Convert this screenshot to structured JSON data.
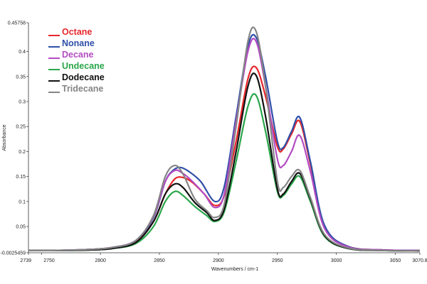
{
  "chart_data": {
    "type": "line",
    "xlabel": "Wavenumbers / cm-1",
    "ylabel": "Absorbance",
    "xlim": [
      2739,
      3070.8
    ],
    "ylim": [
      -0.0025459,
      0.45758
    ],
    "x_ticks": [
      {
        "value": 2739,
        "label": "2739"
      },
      {
        "value": 2750,
        "label": "2750"
      },
      {
        "value": 2800,
        "label": "2800"
      },
      {
        "value": 2850,
        "label": "2850"
      },
      {
        "value": 2900,
        "label": "2900"
      },
      {
        "value": 2950,
        "label": "2950"
      },
      {
        "value": 3000,
        "label": "3000"
      },
      {
        "value": 3050,
        "label": "3050"
      },
      {
        "value": 3070.8,
        "label": "3070.8"
      }
    ],
    "y_ticks": [
      {
        "value": -0.0025459,
        "label": "-0.0025459"
      },
      {
        "value": 0.05,
        "label": "0.05"
      },
      {
        "value": 0.1,
        "label": "0.1"
      },
      {
        "value": 0.15,
        "label": "0.15"
      },
      {
        "value": 0.2,
        "label": "0.2"
      },
      {
        "value": 0.25,
        "label": "0.25"
      },
      {
        "value": 0.3,
        "label": "0.3"
      },
      {
        "value": 0.35,
        "label": "0.35"
      },
      {
        "value": 0.4,
        "label": "0.4"
      },
      {
        "value": 0.45758,
        "label": "0.45758"
      }
    ],
    "grid": false,
    "legend_position": "top-left",
    "series": [
      {
        "name": "Octane",
        "color": "#e8262b",
        "x": [
          2739,
          2760,
          2790,
          2810,
          2830,
          2845,
          2855,
          2863,
          2870,
          2878,
          2888,
          2897,
          2905,
          2915,
          2925,
          2932,
          2940,
          2950,
          2955,
          2962,
          2969,
          2978,
          2990,
          3010,
          3040,
          3070.8
        ],
        "y": [
          0.002,
          0.002,
          0.004,
          0.008,
          0.02,
          0.06,
          0.115,
          0.145,
          0.148,
          0.138,
          0.115,
          0.092,
          0.112,
          0.22,
          0.345,
          0.368,
          0.31,
          0.21,
          0.205,
          0.235,
          0.26,
          0.175,
          0.05,
          0.01,
          0.003,
          0.002
        ]
      },
      {
        "name": "Nonane",
        "color": "#2f4fa8",
        "x": [
          2739,
          2760,
          2790,
          2810,
          2830,
          2845,
          2855,
          2862,
          2868,
          2875,
          2885,
          2897,
          2905,
          2915,
          2925,
          2932,
          2940,
          2950,
          2955,
          2962,
          2969,
          2978,
          2990,
          3010,
          3040,
          3070.8
        ],
        "y": [
          0.002,
          0.002,
          0.004,
          0.008,
          0.022,
          0.068,
          0.14,
          0.163,
          0.168,
          0.16,
          0.14,
          0.1,
          0.13,
          0.27,
          0.41,
          0.428,
          0.35,
          0.22,
          0.208,
          0.24,
          0.268,
          0.18,
          0.052,
          0.01,
          0.003,
          0.002
        ]
      },
      {
        "name": "Decane",
        "color": "#b44cc2",
        "x": [
          2739,
          2760,
          2790,
          2810,
          2830,
          2845,
          2855,
          2863,
          2870,
          2878,
          2888,
          2897,
          2905,
          2915,
          2925,
          2932,
          2940,
          2950,
          2955,
          2962,
          2969,
          2978,
          2990,
          3010,
          3040,
          3070.8
        ],
        "y": [
          0.002,
          0.002,
          0.004,
          0.008,
          0.022,
          0.07,
          0.14,
          0.162,
          0.156,
          0.14,
          0.115,
          0.088,
          0.115,
          0.26,
          0.4,
          0.42,
          0.33,
          0.185,
          0.172,
          0.2,
          0.232,
          0.16,
          0.046,
          0.009,
          0.003,
          0.002
        ]
      },
      {
        "name": "Undecane",
        "color": "#2aa64a",
        "x": [
          2739,
          2760,
          2790,
          2810,
          2830,
          2845,
          2855,
          2863,
          2870,
          2880,
          2890,
          2897,
          2905,
          2915,
          2925,
          2932,
          2940,
          2950,
          2955,
          2962,
          2969,
          2978,
          2990,
          3010,
          3040,
          3070.8
        ],
        "y": [
          0.002,
          0.002,
          0.003,
          0.006,
          0.016,
          0.05,
          0.1,
          0.12,
          0.112,
          0.09,
          0.072,
          0.06,
          0.08,
          0.18,
          0.29,
          0.312,
          0.24,
          0.12,
          0.112,
          0.135,
          0.15,
          0.1,
          0.03,
          0.006,
          0.002,
          0.001
        ]
      },
      {
        "name": "Dodecane",
        "color": "#111111",
        "x": [
          2739,
          2760,
          2790,
          2810,
          2830,
          2845,
          2855,
          2863,
          2870,
          2880,
          2890,
          2897,
          2905,
          2915,
          2925,
          2932,
          2940,
          2950,
          2955,
          2962,
          2969,
          2978,
          2990,
          3010,
          3040,
          3070.8
        ],
        "y": [
          0.002,
          0.002,
          0.003,
          0.006,
          0.018,
          0.06,
          0.115,
          0.135,
          0.128,
          0.098,
          0.078,
          0.062,
          0.085,
          0.2,
          0.33,
          0.352,
          0.27,
          0.125,
          0.115,
          0.14,
          0.156,
          0.105,
          0.032,
          0.006,
          0.002,
          0.001
        ]
      },
      {
        "name": "Tridecane",
        "color": "#858585",
        "x": [
          2739,
          2760,
          2790,
          2810,
          2830,
          2845,
          2855,
          2863,
          2870,
          2880,
          2890,
          2897,
          2905,
          2915,
          2925,
          2932,
          2940,
          2950,
          2955,
          2962,
          2969,
          2978,
          2990,
          3010,
          3040,
          3070.8
        ],
        "y": [
          0.002,
          0.002,
          0.004,
          0.008,
          0.022,
          0.072,
          0.15,
          0.172,
          0.155,
          0.105,
          0.082,
          0.068,
          0.095,
          0.25,
          0.42,
          0.44,
          0.33,
          0.14,
          0.128,
          0.15,
          0.162,
          0.108,
          0.034,
          0.007,
          0.002,
          0.001
        ]
      }
    ]
  }
}
